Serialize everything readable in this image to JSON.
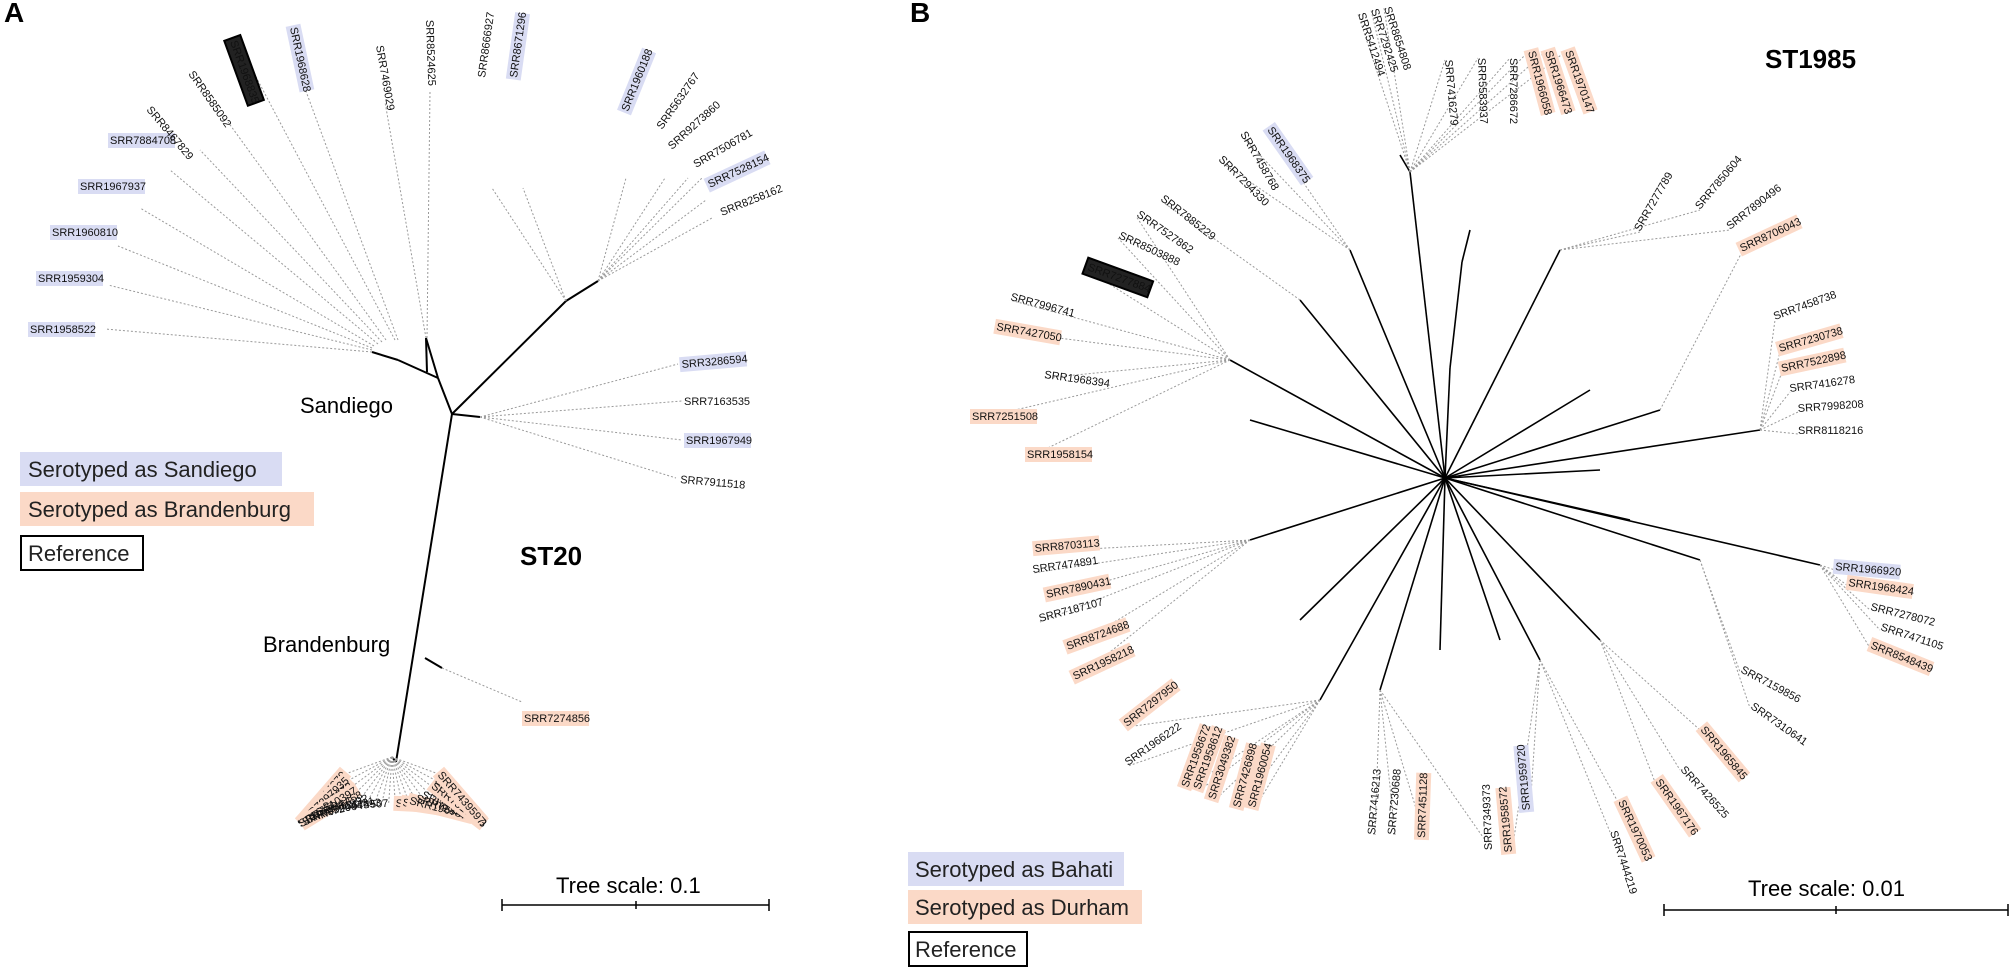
{
  "colors": {
    "sandiego_bahati": "#d9dcf3",
    "brandenburg_durham": "#fbd9c7",
    "reference_border": "#000000",
    "branch": "#000000",
    "leader": "#9a9a9a"
  },
  "panel_a": {
    "letter": "A",
    "st_label": "ST20",
    "clade_sandiego": "Sandiego",
    "clade_brandenburg": "Brandenburg",
    "legend": [
      {
        "label": "Serotyped as Sandiego",
        "kind": "blue"
      },
      {
        "label": "Serotyped as Brandenburg",
        "kind": "orange"
      },
      {
        "label": "Reference",
        "kind": "ref"
      }
    ],
    "scale_label": "Tree scale: 0.1",
    "leaves": [
      {
        "name": "SRR1958522",
        "kind": "blue"
      },
      {
        "name": "SRR1959304",
        "kind": "blue"
      },
      {
        "name": "SRR1960810",
        "kind": "blue"
      },
      {
        "name": "SRR1967937",
        "kind": "blue"
      },
      {
        "name": "SRR7884708",
        "kind": "blue"
      },
      {
        "name": "SRR8467829",
        "kind": "none"
      },
      {
        "name": "SRR8585092",
        "kind": "none"
      },
      {
        "name": "SRR1968835",
        "kind": "ref"
      },
      {
        "name": "SRR1968628",
        "kind": "blue"
      },
      {
        "name": "SRR7469029",
        "kind": "none"
      },
      {
        "name": "SRR8524625",
        "kind": "none"
      },
      {
        "name": "SRR8666927",
        "kind": "none"
      },
      {
        "name": "SRR8671296",
        "kind": "blue"
      },
      {
        "name": "SRR1960188",
        "kind": "blue"
      },
      {
        "name": "SRR5632767",
        "kind": "none"
      },
      {
        "name": "SRR9273860",
        "kind": "none"
      },
      {
        "name": "SRR7506781",
        "kind": "none"
      },
      {
        "name": "SRR7528154",
        "kind": "blue"
      },
      {
        "name": "SRR8258162",
        "kind": "none"
      },
      {
        "name": "SRR3286594",
        "kind": "blue"
      },
      {
        "name": "SRR7163535",
        "kind": "none"
      },
      {
        "name": "SRR1967949",
        "kind": "blue"
      },
      {
        "name": "SRR7911518",
        "kind": "none"
      },
      {
        "name": "SRR7274856",
        "kind": "orange"
      },
      {
        "name": "SRR7414979",
        "kind": "orange"
      },
      {
        "name": "SRR7297935",
        "kind": "orange"
      },
      {
        "name": "SRR7457972",
        "kind": "none"
      },
      {
        "name": "SRR7310397",
        "kind": "orange"
      },
      {
        "name": "SRR7311458",
        "kind": "none"
      },
      {
        "name": "SRR8541992",
        "kind": "none"
      },
      {
        "name": "SRR7204431",
        "kind": "none"
      },
      {
        "name": "SRR9004593",
        "kind": "none"
      },
      {
        "name": "SRR8674507",
        "kind": "none"
      },
      {
        "name": "SRR8698633",
        "kind": "orange"
      },
      {
        "name": "SRR1966156",
        "kind": "orange"
      },
      {
        "name": "SRR1967457",
        "kind": "orange"
      },
      {
        "name": "SRR7288752",
        "kind": "none"
      },
      {
        "name": "SRR8553962",
        "kind": "none"
      },
      {
        "name": "SRR8553987",
        "kind": "none"
      },
      {
        "name": "SRR7516548",
        "kind": "orange"
      },
      {
        "name": "SRR8585090",
        "kind": "none"
      },
      {
        "name": "SRR7439597",
        "kind": "orange"
      }
    ]
  },
  "panel_b": {
    "letter": "B",
    "st_label": "ST1985",
    "legend": [
      {
        "label": "Serotyped as Bahati",
        "kind": "blue"
      },
      {
        "label": "Serotyped as Durham",
        "kind": "orange"
      },
      {
        "label": "Reference",
        "kind": "ref"
      }
    ],
    "scale_label": "Tree scale: 0.01",
    "leaves": [
      {
        "name": "SRR5412494",
        "kind": "none"
      },
      {
        "name": "SRR7292425",
        "kind": "none"
      },
      {
        "name": "SRR8654808",
        "kind": "none"
      },
      {
        "name": "SRR7416279",
        "kind": "none"
      },
      {
        "name": "SRR5583937",
        "kind": "none"
      },
      {
        "name": "SRR7286672",
        "kind": "none"
      },
      {
        "name": "SRR1966058",
        "kind": "orange"
      },
      {
        "name": "SRR1966473",
        "kind": "orange"
      },
      {
        "name": "SRR1970147",
        "kind": "orange"
      },
      {
        "name": "SRR1968375",
        "kind": "blue"
      },
      {
        "name": "SRR7458768",
        "kind": "none"
      },
      {
        "name": "SRR7294330",
        "kind": "none"
      },
      {
        "name": "SRR7885229",
        "kind": "none"
      },
      {
        "name": "SRR7527862",
        "kind": "none"
      },
      {
        "name": "SRR8503888",
        "kind": "none"
      },
      {
        "name": "SRR7277884",
        "kind": "ref"
      },
      {
        "name": "SRR7996741",
        "kind": "none"
      },
      {
        "name": "SRR7427050",
        "kind": "orange"
      },
      {
        "name": "SRR1968394",
        "kind": "none"
      },
      {
        "name": "SRR7251508",
        "kind": "orange"
      },
      {
        "name": "SRR1958154",
        "kind": "orange"
      },
      {
        "name": "SRR7277789",
        "kind": "none"
      },
      {
        "name": "SRR7850604",
        "kind": "none"
      },
      {
        "name": "SRR7890496",
        "kind": "none"
      },
      {
        "name": "SRR8706043",
        "kind": "orange"
      },
      {
        "name": "SRR7458738",
        "kind": "none"
      },
      {
        "name": "SRR7230738",
        "kind": "orange"
      },
      {
        "name": "SRR7522898",
        "kind": "orange"
      },
      {
        "name": "SRR7416278",
        "kind": "none"
      },
      {
        "name": "SRR7998208",
        "kind": "none"
      },
      {
        "name": "SRR8118216",
        "kind": "none"
      },
      {
        "name": "SRR8703113",
        "kind": "orange"
      },
      {
        "name": "SRR7474891",
        "kind": "none"
      },
      {
        "name": "SRR7890431",
        "kind": "orange"
      },
      {
        "name": "SRR7187107",
        "kind": "none"
      },
      {
        "name": "SRR8724688",
        "kind": "orange"
      },
      {
        "name": "SRR1958218",
        "kind": "orange"
      },
      {
        "name": "SRR7297950",
        "kind": "orange"
      },
      {
        "name": "SRR1966222",
        "kind": "none"
      },
      {
        "name": "SRR1966920",
        "kind": "blue"
      },
      {
        "name": "SRR1968424",
        "kind": "orange"
      },
      {
        "name": "SRR7278072",
        "kind": "none"
      },
      {
        "name": "SRR7471105",
        "kind": "none"
      },
      {
        "name": "SRR8548439",
        "kind": "orange"
      },
      {
        "name": "SRR7159856",
        "kind": "none"
      },
      {
        "name": "SRR7310641",
        "kind": "none"
      },
      {
        "name": "SRR1965845",
        "kind": "orange"
      },
      {
        "name": "SRR7426525",
        "kind": "none"
      },
      {
        "name": "SRR1967176",
        "kind": "orange"
      },
      {
        "name": "SRR1970053",
        "kind": "orange"
      },
      {
        "name": "SRR7444219",
        "kind": "none"
      },
      {
        "name": "SRR1958672",
        "kind": "orange"
      },
      {
        "name": "SRR1958612",
        "kind": "orange"
      },
      {
        "name": "SRR3049382",
        "kind": "orange"
      },
      {
        "name": "SRR7426898",
        "kind": "orange"
      },
      {
        "name": "SRR1960054",
        "kind": "orange"
      },
      {
        "name": "SRR7416213",
        "kind": "none"
      },
      {
        "name": "SRR7230688",
        "kind": "none"
      },
      {
        "name": "SRR7451128",
        "kind": "orange"
      },
      {
        "name": "SRR7349373",
        "kind": "none"
      },
      {
        "name": "SRR1958572",
        "kind": "orange"
      },
      {
        "name": "SRR1959720",
        "kind": "blue"
      }
    ]
  }
}
